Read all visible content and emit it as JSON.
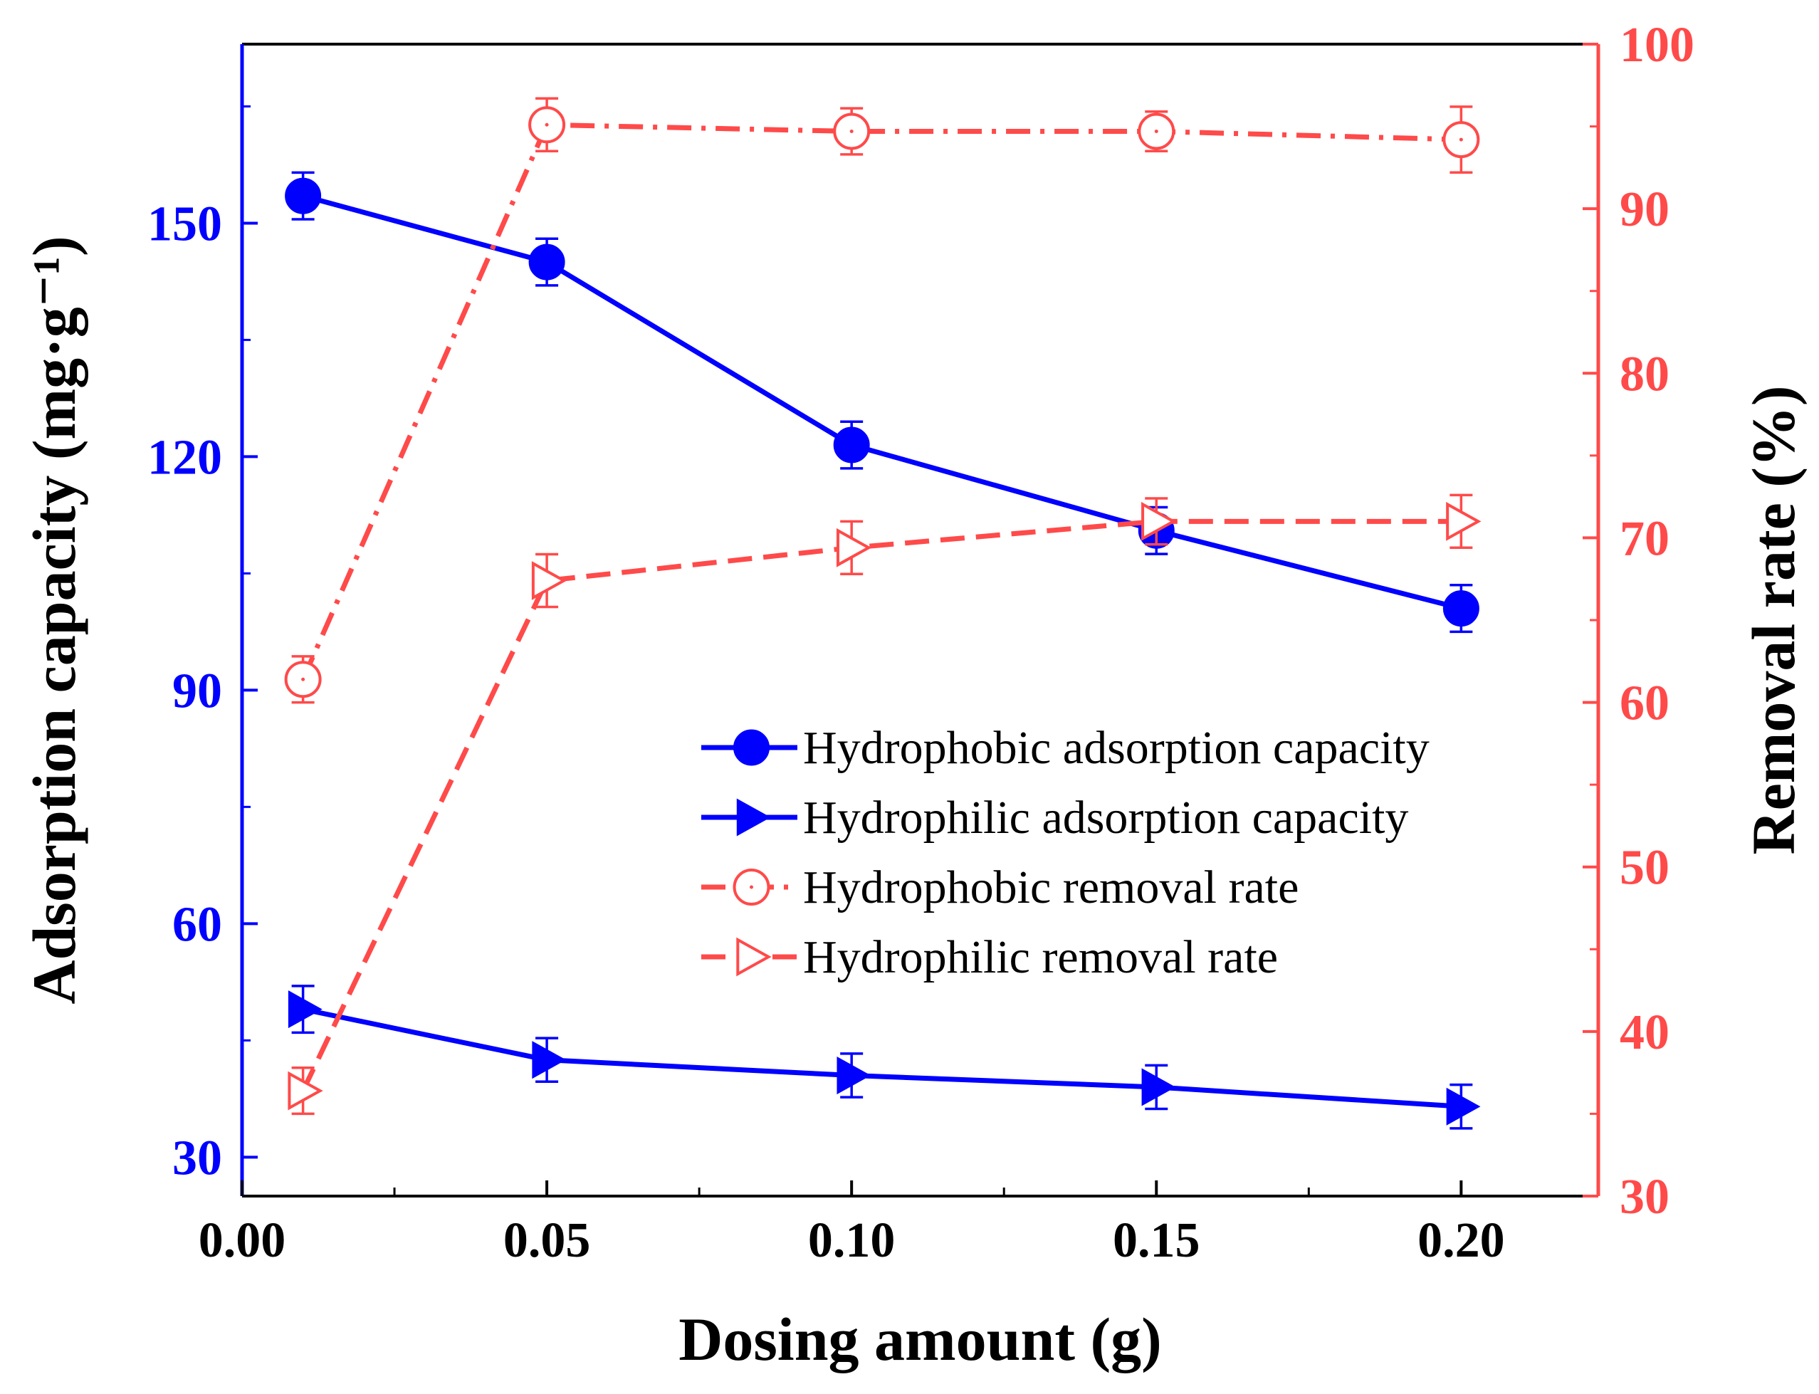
{
  "chart_data": {
    "type": "line",
    "x": [
      0.01,
      0.05,
      0.1,
      0.15,
      0.2
    ],
    "xlabel": "Dosing amount (g)",
    "xlim": [
      0.0,
      0.2225
    ],
    "x_ticks": [
      "0.00",
      "0.05",
      "0.10",
      "0.15",
      "0.20"
    ],
    "y_left": {
      "label": "Adsorption capacity (mg·g⁻¹)",
      "lim": [
        25,
        173
      ],
      "ticks": [
        "30",
        "60",
        "90",
        "120",
        "150"
      ],
      "color": "#0000ff"
    },
    "y_right": {
      "label": "Removal rate (%)",
      "lim": [
        30,
        100
      ],
      "ticks": [
        "30",
        "40",
        "50",
        "60",
        "70",
        "80",
        "90",
        "100"
      ],
      "color": "#ff4a4a"
    },
    "series": [
      {
        "name": "Hydrophobic adsorption capacity",
        "axis": "left",
        "marker": "filled-circle",
        "line": "solid",
        "color": "#0000ff",
        "values": [
          153.5,
          145.0,
          121.5,
          110.5,
          100.5
        ],
        "errors": [
          3.0,
          3.0,
          3.0,
          3.0,
          3.0
        ]
      },
      {
        "name": "Hydrophilic adsorption capacity",
        "axis": "left",
        "marker": "filled-triangle-right",
        "line": "solid",
        "color": "#0000ff",
        "values": [
          49.0,
          42.5,
          40.5,
          39.0,
          36.5
        ],
        "errors": [
          3.0,
          2.8,
          2.8,
          2.8,
          2.8
        ]
      },
      {
        "name": "Hydrophobic removal rate",
        "axis": "right",
        "marker": "open-circle",
        "line": "dash-dot",
        "color": "#ff4a4a",
        "values": [
          61.4,
          95.1,
          94.7,
          94.7,
          94.2
        ],
        "errors": [
          1.4,
          1.6,
          1.4,
          1.2,
          2.0
        ]
      },
      {
        "name": "Hydrophilic removal rate",
        "axis": "right",
        "marker": "open-triangle-right",
        "line": "dash",
        "color": "#ff4a4a",
        "values": [
          36.4,
          67.4,
          69.4,
          71.0,
          71.0
        ],
        "errors": [
          1.4,
          1.6,
          1.6,
          1.4,
          1.6
        ]
      }
    ],
    "legend_position": "center-right"
  }
}
